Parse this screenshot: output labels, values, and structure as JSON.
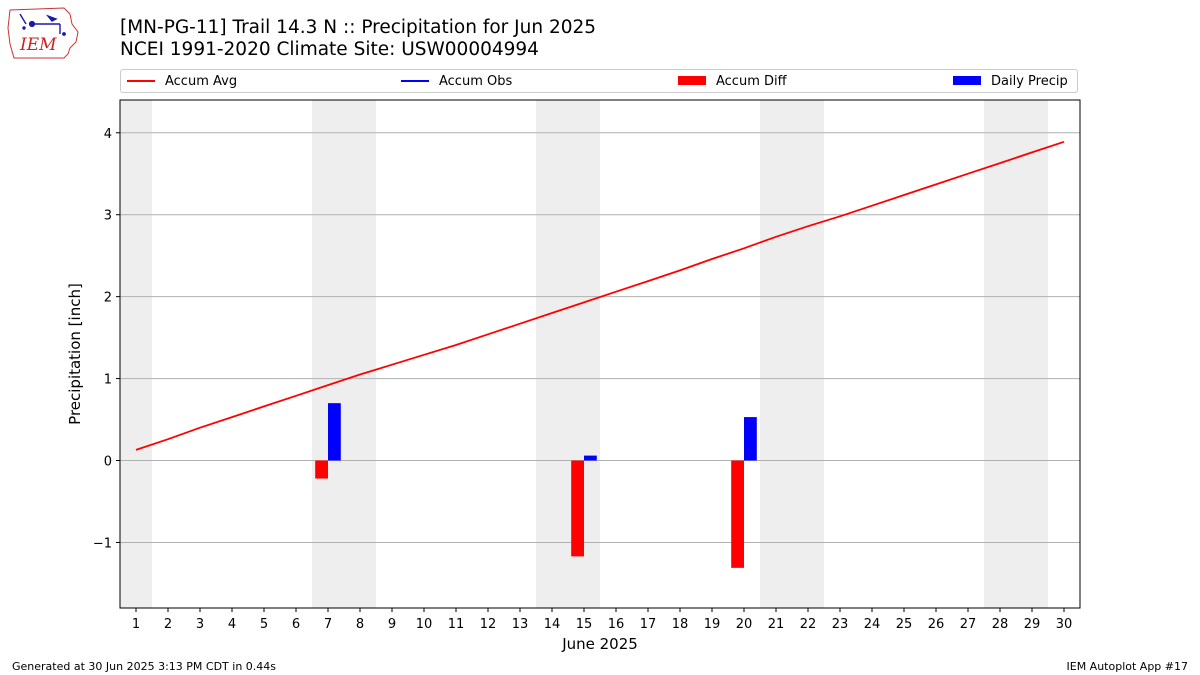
{
  "logo": {
    "text": "IEM",
    "icon": "iem-iowa-logo-icon"
  },
  "header": {
    "title_line1": "[MN-PG-11] Trail 14.3 N :: Precipitation for Jun 2025",
    "title_line2": "NCEI 1991-2020 Climate Site: USW00004994"
  },
  "legend": {
    "items": [
      {
        "label": "Accum Avg",
        "kind": "line",
        "color": "#ff0000"
      },
      {
        "label": "Accum Obs",
        "kind": "line",
        "color": "#0000ff"
      },
      {
        "label": "Accum Diff",
        "kind": "patch",
        "color": "#ff0000"
      },
      {
        "label": "Daily Precip",
        "kind": "patch",
        "color": "#0000ff"
      }
    ]
  },
  "footer": {
    "generated": "Generated at 30 Jun 2025 3:13 PM CDT in 0.44s",
    "app": "IEM Autoplot App #17"
  },
  "chart_data": {
    "type": "bar",
    "xlabel": "June 2025",
    "ylabel": "Precipitation [inch]",
    "x": [
      1,
      2,
      3,
      4,
      5,
      6,
      7,
      8,
      9,
      10,
      11,
      12,
      13,
      14,
      15,
      16,
      17,
      18,
      19,
      20,
      21,
      22,
      23,
      24,
      25,
      26,
      27,
      28,
      29,
      30
    ],
    "xlim": [
      0.5,
      30.5
    ],
    "ylim": [
      -1.8,
      4.4
    ],
    "yticks": [
      -1,
      0,
      1,
      2,
      3,
      4
    ],
    "ytick_labels": [
      "−1",
      "0",
      "1",
      "2",
      "3",
      "4"
    ],
    "grid": "horizontal",
    "weekend_shading": [
      [
        0.5,
        1.5
      ],
      [
        6.5,
        8.5
      ],
      [
        13.5,
        15.5
      ],
      [
        20.5,
        22.5
      ],
      [
        27.5,
        29.5
      ]
    ],
    "weekend_color": "#eeeeee",
    "series": [
      {
        "name": "Accum Avg",
        "type": "line",
        "color": "#ff0000",
        "x": [
          1,
          2,
          3,
          4,
          5,
          6,
          7,
          8,
          9,
          10,
          11,
          12,
          13,
          14,
          15,
          16,
          17,
          18,
          19,
          20,
          21,
          22,
          23,
          24,
          25,
          26,
          27,
          28,
          29,
          30
        ],
        "values": [
          0.13,
          0.26,
          0.4,
          0.53,
          0.66,
          0.79,
          0.92,
          1.05,
          1.17,
          1.29,
          1.41,
          1.54,
          1.67,
          1.8,
          1.93,
          2.06,
          2.19,
          2.32,
          2.46,
          2.59,
          2.73,
          2.86,
          2.98,
          3.11,
          3.24,
          3.37,
          3.5,
          3.63,
          3.76,
          3.89
        ]
      },
      {
        "name": "Accum Diff",
        "type": "bar",
        "color": "#ff0000",
        "x": [
          7,
          15,
          20
        ],
        "values": [
          -0.22,
          -1.17,
          -1.31
        ]
      },
      {
        "name": "Daily Precip",
        "type": "bar",
        "color": "#0000ff",
        "x": [
          7,
          15,
          20
        ],
        "values": [
          0.7,
          0.06,
          0.53
        ]
      }
    ]
  }
}
